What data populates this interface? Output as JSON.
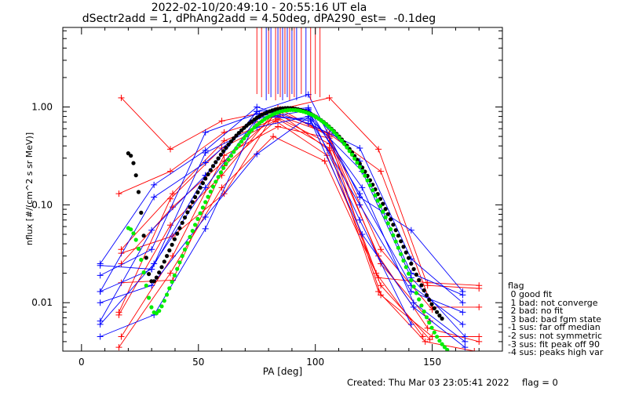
{
  "header": {
    "title_line1": "2022-02-10/20:49:10 - 20:55:16 UT ela",
    "title_line2": "dSectr2add = 1, dPhAng2add = 4.50deg, dPA290_est=  -0.1deg"
  },
  "footer": {
    "created": "Created: Thu Mar 03 23:05:41 2022",
    "flag": "flag = 0"
  },
  "legend": {
    "title": "flag",
    "items": [
      " 0 good fit",
      " 1 bad: not converge",
      " 2 bad: no fit",
      " 3 bad: bad fgm state",
      "-1 sus: far off median",
      "-2 sus: not symmetric",
      "-3 sus: fit peak off 90",
      "-4 sus: peaks high var"
    ]
  },
  "colors": {
    "series_red": "#ff0000",
    "series_blue": "#0000ff",
    "fit_black": "#000000",
    "fit_green": "#00ee00"
  },
  "chart_data": {
    "type": "line",
    "xlabel": "PA [deg]",
    "ylabel": "nflux [#/(cm^2 s sr MeV)]",
    "xlim": [
      -8,
      180
    ],
    "ylim": [
      0.0032,
      6.5
    ],
    "yscale": "log",
    "xticks": [
      0,
      50,
      100,
      150
    ],
    "yticks": [
      {
        "value": 0.01,
        "label": "0.01"
      },
      {
        "value": 0.1,
        "label": "0.10"
      },
      {
        "value": 1.0,
        "label": "1.00"
      }
    ],
    "grid": false,
    "series": [
      {
        "color": "red",
        "points": [
          [
            17,
            1.24
          ],
          [
            38,
            0.37
          ],
          [
            60,
            0.72
          ],
          [
            85,
            0.95
          ],
          [
            106,
            1.24
          ],
          [
            127,
            0.37
          ],
          [
            148,
            0.015
          ],
          [
            170,
            0.014
          ]
        ]
      },
      {
        "color": "red",
        "points": [
          [
            16,
            0.13
          ],
          [
            38,
            0.22
          ],
          [
            61,
            0.55
          ],
          [
            84,
            0.82
          ],
          [
            106,
            0.53
          ],
          [
            128,
            0.22
          ],
          [
            150,
            0.009
          ],
          [
            170,
            0.009
          ]
        ]
      },
      {
        "color": "red",
        "points": [
          [
            17,
            0.035
          ],
          [
            39,
            0.13
          ],
          [
            61,
            0.45
          ],
          [
            84,
            0.78
          ],
          [
            106,
            0.42
          ],
          [
            127,
            0.03
          ],
          [
            148,
            0.0055
          ],
          [
            170,
            0.004
          ]
        ]
      },
      {
        "color": "red",
        "points": [
          [
            17,
            0.025
          ],
          [
            39,
            0.095
          ],
          [
            61,
            0.28
          ],
          [
            84,
            0.88
          ],
          [
            106,
            0.36
          ],
          [
            127,
            0.013
          ],
          [
            147,
            0.004
          ],
          [
            168,
            0.0032
          ]
        ]
      },
      {
        "color": "red",
        "points": [
          [
            16,
            0.0075
          ],
          [
            38,
            0.062
          ],
          [
            60,
            0.2
          ],
          [
            83,
            0.92
          ],
          [
            105,
            0.55
          ],
          [
            128,
            0.025
          ],
          [
            149,
            0.0065
          ]
        ]
      },
      {
        "color": "red",
        "points": [
          [
            17,
            0.0045
          ],
          [
            39,
            0.03
          ],
          [
            61,
            0.32
          ],
          [
            84,
            0.63
          ],
          [
            106,
            0.48
          ],
          [
            128,
            0.012
          ],
          [
            150,
            0.0045
          ],
          [
            170,
            0.0045
          ]
        ]
      },
      {
        "color": "red",
        "points": [
          [
            16,
            0.0035
          ],
          [
            38,
            0.02
          ],
          [
            60,
            0.15
          ],
          [
            82,
            0.5
          ],
          [
            104,
            0.28
          ],
          [
            126,
            0.02
          ],
          [
            146,
            0.0045
          ]
        ]
      },
      {
        "color": "red",
        "points": [
          [
            17,
            0.032
          ],
          [
            39,
            0.048
          ],
          [
            61,
            0.13
          ],
          [
            84,
            0.98
          ],
          [
            106,
            0.5
          ],
          [
            128,
            0.035
          ],
          [
            150,
            0.0085
          ]
        ]
      },
      {
        "color": "red",
        "points": [
          [
            17,
            0.016
          ],
          [
            39,
            0.017
          ],
          [
            61,
            0.25
          ],
          [
            83,
            0.72
          ],
          [
            105,
            0.32
          ],
          [
            127,
            0.018
          ],
          [
            148,
            0.016
          ],
          [
            170,
            0.015
          ]
        ]
      },
      {
        "color": "red",
        "points": [
          [
            16,
            0.008
          ],
          [
            38,
            0.115
          ],
          [
            60,
            0.38
          ],
          [
            84,
            0.75
          ],
          [
            106,
            0.38
          ],
          [
            128,
            0.015
          ],
          [
            149,
            0.0042
          ]
        ]
      },
      {
        "color": "blue",
        "points": [
          [
            8,
            0.024
          ],
          [
            30,
            0.022
          ],
          [
            53,
            0.2
          ],
          [
            75,
            0.9
          ],
          [
            97,
            1.34
          ],
          [
            119,
            0.12
          ],
          [
            141,
            0.055
          ],
          [
            163,
            0.013
          ]
        ]
      },
      {
        "color": "blue",
        "points": [
          [
            8,
            0.013
          ],
          [
            30,
            0.022
          ],
          [
            53,
            0.34
          ],
          [
            75,
            0.62
          ],
          [
            97,
            0.8
          ],
          [
            119,
            0.1
          ],
          [
            141,
            0.013
          ],
          [
            163,
            0.008
          ]
        ]
      },
      {
        "color": "blue",
        "points": [
          [
            8,
            0.019
          ],
          [
            30,
            0.035
          ],
          [
            53,
            0.55
          ],
          [
            75,
            0.85
          ],
          [
            97,
            0.95
          ],
          [
            119,
            0.28
          ],
          [
            141,
            0.02
          ],
          [
            163,
            0.012
          ]
        ]
      },
      {
        "color": "blue",
        "points": [
          [
            8,
            0.025
          ],
          [
            31,
            0.16
          ],
          [
            53,
            0.36
          ],
          [
            75,
            1.0
          ],
          [
            97,
            0.68
          ],
          [
            119,
            0.38
          ],
          [
            141,
            0.028
          ],
          [
            163,
            0.01
          ]
        ]
      },
      {
        "color": "blue",
        "points": [
          [
            8,
            0.013
          ],
          [
            31,
            0.12
          ],
          [
            53,
            0.27
          ],
          [
            76,
            0.8
          ],
          [
            98,
            0.75
          ],
          [
            120,
            0.22
          ],
          [
            141,
            0.018
          ],
          [
            164,
            0.0045
          ]
        ]
      },
      {
        "color": "blue",
        "points": [
          [
            8,
            0.01
          ],
          [
            30,
            0.015
          ],
          [
            53,
            0.075
          ],
          [
            75,
            0.33
          ],
          [
            98,
            0.82
          ],
          [
            120,
            0.15
          ],
          [
            142,
            0.01
          ],
          [
            164,
            0.004
          ]
        ]
      },
      {
        "color": "blue",
        "points": [
          [
            8,
            0.0065
          ],
          [
            30,
            0.055
          ],
          [
            53,
            0.2
          ],
          [
            75,
            0.9
          ],
          [
            97,
            0.98
          ],
          [
            119,
            0.13
          ],
          [
            141,
            0.015
          ],
          [
            163,
            0.006
          ]
        ]
      },
      {
        "color": "blue",
        "points": [
          [
            8,
            0.0045
          ],
          [
            31,
            0.0075
          ],
          [
            53,
            0.057
          ],
          [
            76,
            0.85
          ],
          [
            98,
            0.72
          ],
          [
            120,
            0.05
          ],
          [
            142,
            0.009
          ],
          [
            164,
            0.0035
          ]
        ]
      },
      {
        "color": "blue",
        "points": [
          [
            8,
            0.006
          ],
          [
            31,
            0.025
          ],
          [
            53,
            0.15
          ],
          [
            75,
            0.76
          ],
          [
            97,
            0.92
          ],
          [
            119,
            0.07
          ],
          [
            141,
            0.006
          ]
        ]
      }
    ],
    "fits": [
      {
        "color": "black",
        "style": "thick dotted",
        "x_range": [
          20,
          155
        ],
        "peak_x": 88,
        "peak_y": 0.97
      },
      {
        "color": "green",
        "style": "thick dotted",
        "x_range": [
          20,
          160
        ],
        "peak_x": 90,
        "peak_y": 0.93
      }
    ]
  }
}
